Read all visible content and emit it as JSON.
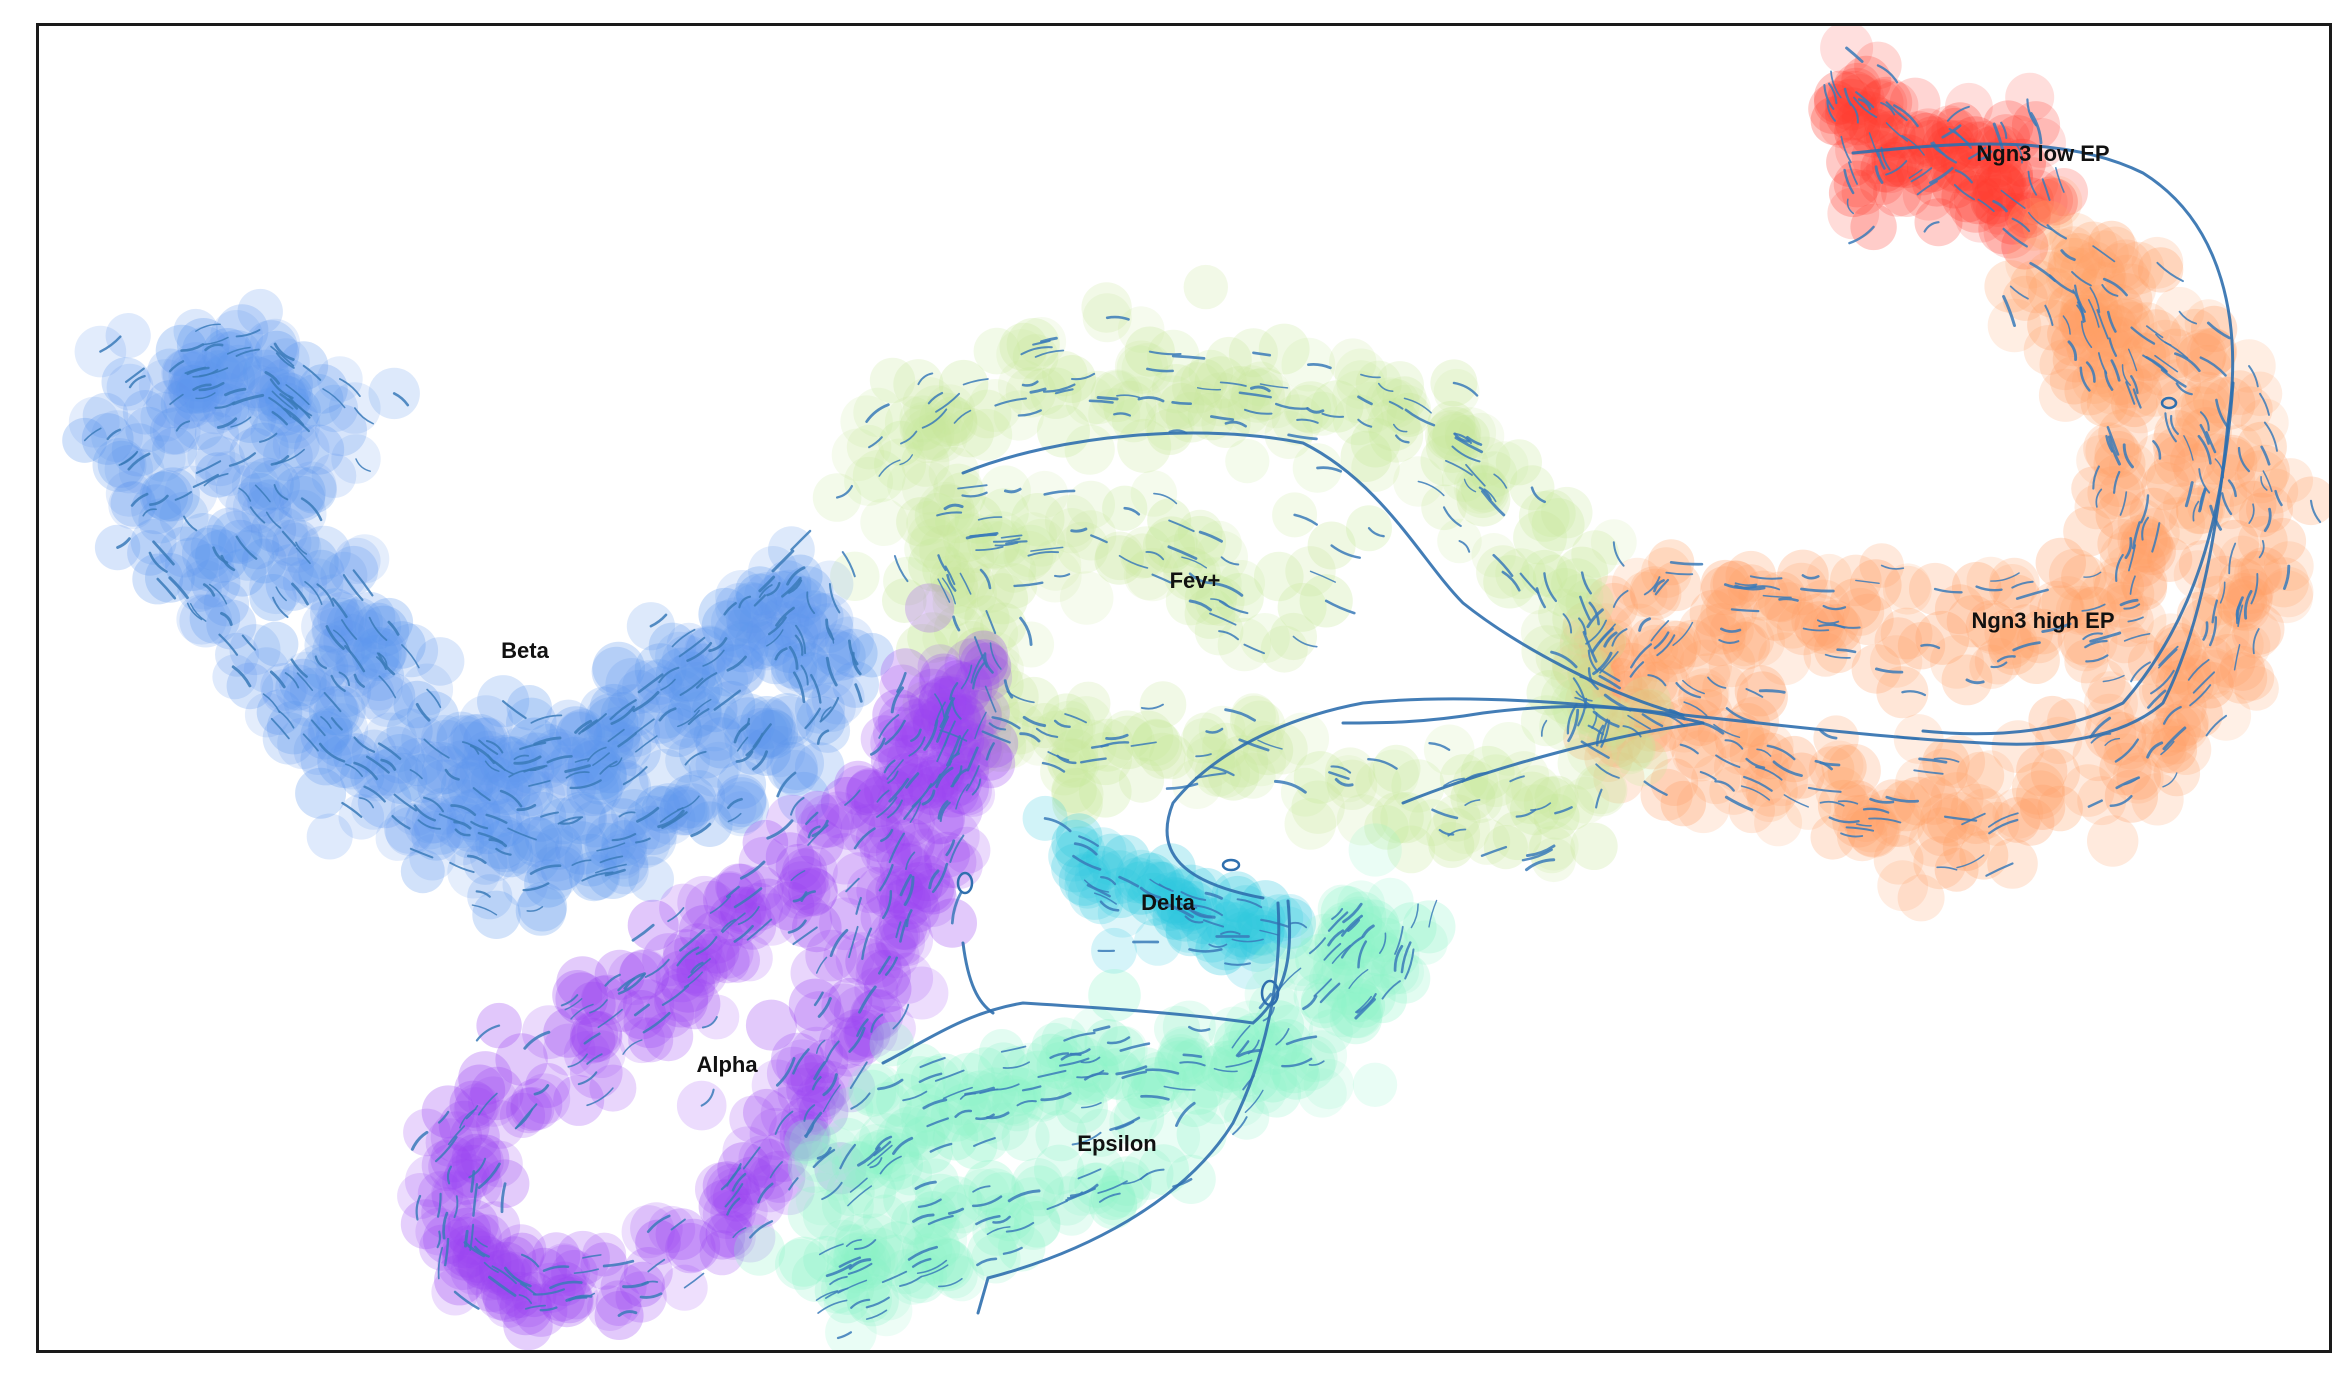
{
  "chart_data": {
    "type": "scatter",
    "title": "",
    "xlabel": "",
    "ylabel": "",
    "axes_visible": false,
    "grid": false,
    "legend": "none (labels drawn on clusters)",
    "overlay": "velocity streamlines",
    "streamline_color": "#3a7ab8",
    "clusters": [
      {
        "label": "Ngn3 low EP",
        "color": "#ff3b2f",
        "label_at": [
          2040,
          150
        ],
        "path": [
          [
            1870,
            80
          ],
          [
            1950,
            150
          ],
          [
            2030,
            210
          ],
          [
            2000,
            120
          ],
          [
            1880,
            200
          ],
          [
            1850,
            120
          ]
        ],
        "spread": 55,
        "count": 110
      },
      {
        "label": "Ngn3 high EP",
        "color": "#ffa066",
        "label_at": [
          2040,
          617
        ],
        "path": [
          [
            2060,
            260
          ],
          [
            2200,
            360
          ],
          [
            2260,
            500
          ],
          [
            2230,
            650
          ],
          [
            2130,
            750
          ],
          [
            1980,
            820
          ],
          [
            1820,
            800
          ],
          [
            1700,
            740
          ],
          [
            1600,
            680
          ],
          [
            1660,
            610
          ],
          [
            1820,
            620
          ],
          [
            1980,
            640
          ],
          [
            2120,
            600
          ],
          [
            2150,
            480
          ],
          [
            2090,
            320
          ]
        ],
        "spread": 70,
        "count": 520
      },
      {
        "label": "Fev+",
        "color": "#c7e89a",
        "label_at": [
          1192,
          577
        ],
        "path": [
          [
            860,
            470
          ],
          [
            950,
            400
          ],
          [
            1080,
            370
          ],
          [
            1210,
            380
          ],
          [
            1350,
            400
          ],
          [
            1460,
            460
          ],
          [
            1550,
            560
          ],
          [
            1600,
            680
          ],
          [
            1570,
            780
          ],
          [
            1460,
            820
          ],
          [
            1340,
            780
          ],
          [
            1230,
            740
          ],
          [
            1100,
            760
          ],
          [
            1000,
            720
          ],
          [
            960,
            620
          ],
          [
            920,
            540
          ],
          [
            1090,
            520
          ],
          [
            1320,
            620
          ]
        ],
        "spread": 65,
        "count": 420
      },
      {
        "label": "Beta",
        "color": "#5e97ee",
        "label_at": [
          522,
          647
        ],
        "path": [
          [
            100,
            440
          ],
          [
            180,
            380
          ],
          [
            250,
            360
          ],
          [
            320,
            420
          ],
          [
            220,
            470
          ],
          [
            300,
            560
          ],
          [
            360,
            640
          ],
          [
            420,
            720
          ],
          [
            500,
            780
          ],
          [
            580,
            760
          ],
          [
            660,
            700
          ],
          [
            740,
            640
          ],
          [
            790,
            590
          ],
          [
            820,
            680
          ],
          [
            760,
            760
          ],
          [
            650,
            830
          ],
          [
            540,
            860
          ],
          [
            440,
            820
          ],
          [
            330,
            740
          ],
          [
            260,
            660
          ]
        ],
        "spread": 60,
        "count": 560
      },
      {
        "label": "Alpha",
        "color": "#9b44f2",
        "label_at": [
          724,
          1061
        ],
        "path": [
          [
            970,
            660
          ],
          [
            940,
            730
          ],
          [
            890,
            790
          ],
          [
            830,
            850
          ],
          [
            760,
            900
          ],
          [
            690,
            960
          ],
          [
            610,
            1020
          ],
          [
            520,
            1080
          ],
          [
            460,
            1150
          ],
          [
            450,
            1240
          ],
          [
            520,
            1290
          ],
          [
            640,
            1270
          ],
          [
            720,
            1210
          ],
          [
            780,
            1130
          ],
          [
            830,
            1050
          ],
          [
            880,
            970
          ],
          [
            900,
            900
          ],
          [
            940,
            820
          ]
        ],
        "spread": 52,
        "count": 420
      },
      {
        "label": "Delta",
        "color": "#2fc9df",
        "label_at": [
          1165,
          899
        ],
        "path": [
          [
            1050,
            840
          ],
          [
            1110,
            870
          ],
          [
            1170,
            900
          ],
          [
            1230,
            920
          ],
          [
            1270,
            930
          ],
          [
            1120,
            930
          ]
        ],
        "spread": 36,
        "count": 70
      },
      {
        "label": "Epsilon",
        "color": "#8cf3c8",
        "label_at": [
          1114,
          1140
        ],
        "path": [
          [
            820,
            1180
          ],
          [
            880,
            1130
          ],
          [
            960,
            1100
          ],
          [
            1050,
            1080
          ],
          [
            1130,
            1060
          ],
          [
            1220,
            1070
          ],
          [
            1300,
            1050
          ],
          [
            1360,
            990
          ],
          [
            1380,
            920
          ],
          [
            1300,
            1000
          ],
          [
            1180,
            1150
          ],
          [
            1060,
            1200
          ],
          [
            940,
            1240
          ],
          [
            850,
            1280
          ]
        ],
        "spread": 58,
        "count": 300
      }
    ]
  }
}
